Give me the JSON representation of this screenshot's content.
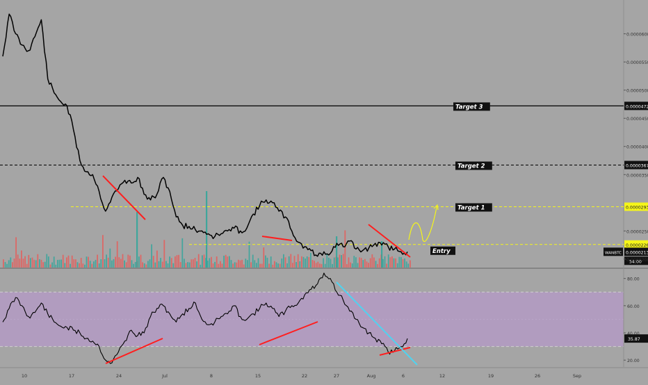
{
  "chart_data": [
    {
      "type": "line",
      "panel": "price",
      "symbol_label": "WANBTC",
      "last_price": 2.13e-05,
      "last_price_label": "0.0000213",
      "countdown_label": "54:00",
      "y_ticks": [
        "0.0000600",
        "0.0000550",
        "0.0000500",
        "0.0000450",
        "0.0000400",
        "0.0000350",
        "0.0000250",
        "0.0000200"
      ],
      "ylim": [
        1.85e-05,
        6.6e-05
      ],
      "series": [
        {
          "x": [
            "Jun 5",
            "Jun 6",
            "Jun 7",
            "Jun 8",
            "Jun 9",
            "Jun 10",
            "Jun 11",
            "Jun 12",
            "Jun 13",
            "Jun 14",
            "Jun 15",
            "Jun 16",
            "Jun 17",
            "Jun 18",
            "Jun 19",
            "Jun 20",
            "Jun 21",
            "Jun 22",
            "Jun 23",
            "Jun 24",
            "Jun 25",
            "Jun 26",
            "Jun 27",
            "Jun 28",
            "Jun 29",
            "Jun 30",
            "Jul 1",
            "Jul 2",
            "Jul 3",
            "Jul 4",
            "Jul 5",
            "Jul 6",
            "Jul 7",
            "Jul 8",
            "Jul 9",
            "Jul 10",
            "Jul 11",
            "Jul 12",
            "Jul 13",
            "Jul 14",
            "Jul 15",
            "Jul 16",
            "Jul 17",
            "Jul 18",
            "Jul 19",
            "Jul 20",
            "Jul 21",
            "Jul 22",
            "Jul 23",
            "Jul 24",
            "Jul 25",
            "Jul 26",
            "Jul 27",
            "Jul 28",
            "Jul 29",
            "Jul 30",
            "Jul 31",
            "Aug 1",
            "Aug 2",
            "Aug 3",
            "Aug 4",
            "Aug 5",
            "Aug 6",
            "Aug 7"
          ],
          "values": [
            5.6e-05,
            6.35e-05,
            6e-05,
            5.8e-05,
            5.7e-05,
            5.95e-05,
            6.25e-05,
            5.2e-05,
            4.95e-05,
            4.8e-05,
            4.72e-05,
            4.3e-05,
            3.75e-05,
            3.55e-05,
            3.5e-05,
            3.2e-05,
            2.85e-05,
            3.1e-05,
            3.25e-05,
            3.4e-05,
            3.35e-05,
            3.45e-05,
            3.15e-05,
            3.05e-05,
            3.15e-05,
            3.45e-05,
            3.2e-05,
            2.75e-05,
            2.6e-05,
            2.58e-05,
            2.52e-05,
            2.5e-05,
            2.45e-05,
            2.4e-05,
            2.45e-05,
            2.5e-05,
            2.55e-05,
            2.5e-05,
            2.55e-05,
            2.8e-05,
            2.95e-05,
            3.05e-05,
            3e-05,
            2.85e-05,
            2.75e-05,
            2.5e-05,
            2.3e-05,
            2.22e-05,
            2.15e-05,
            2.05e-05,
            2.13e-05,
            2.1e-05,
            2.28e-05,
            2.22e-05,
            2.32e-05,
            2.18e-05,
            2.15e-05,
            2.2e-05,
            2.28e-05,
            2.25e-05,
            2.22e-05,
            2.18e-05,
            2.13e-05,
            2.13e-05
          ]
        }
      ],
      "levels": [
        {
          "price": 4.72e-05,
          "label": "Target 3",
          "price_label": "0.0000472",
          "style": "solid",
          "color": "#000000"
        },
        {
          "price": 3.67e-05,
          "label": "Target 2",
          "price_label": "0.0000367",
          "style": "dashed",
          "color": "#000000"
        },
        {
          "price": 2.93e-05,
          "label": "Target 1",
          "price_label": "0.0000293",
          "style": "dashed",
          "color": "#f5f51a"
        },
        {
          "price": 2.26e-05,
          "label": "Entry",
          "price_label": "0.0000226",
          "style": "dashed",
          "color": "#f5f51a"
        }
      ],
      "colors": {
        "price_line": "#000000",
        "annotation": "#ff1e1e",
        "projection": "#f5f51a",
        "volume_up": "#26a69a",
        "volume_down": "#ef5350"
      }
    },
    {
      "type": "line",
      "panel": "rsi",
      "last_value": 35.87,
      "last_value_label": "35.87",
      "y_ticks": [
        "80.00",
        "60.00",
        "40.00",
        "20.00"
      ],
      "ylim": [
        15,
        87
      ],
      "band": [
        30,
        70
      ],
      "series": [
        {
          "values": [
            48,
            58,
            66,
            60,
            52,
            55,
            62,
            54,
            48,
            45,
            44,
            42,
            40,
            36,
            34,
            30,
            20,
            18,
            26,
            34,
            42,
            38,
            40,
            52,
            58,
            60,
            54,
            48,
            54,
            58,
            62,
            50,
            46,
            48,
            52,
            54,
            60,
            52,
            50,
            54,
            58,
            62,
            58,
            52,
            56,
            60,
            62,
            68,
            72,
            76,
            84,
            80,
            70,
            64,
            56,
            50,
            44,
            40,
            36,
            32,
            26,
            27,
            30,
            35.87
          ]
        }
      ],
      "colors": {
        "rsi_line": "#000000",
        "band_fill": "#b59ac8",
        "annotation": "#ff1e1e",
        "trendline": "#4fd3f0"
      }
    }
  ],
  "x_axis": {
    "tick_labels": [
      "10",
      "17",
      "24",
      "Jul",
      "8",
      "15",
      "22",
      "27",
      "Aug",
      "6",
      "12",
      "19",
      "26",
      "Sep"
    ]
  }
}
